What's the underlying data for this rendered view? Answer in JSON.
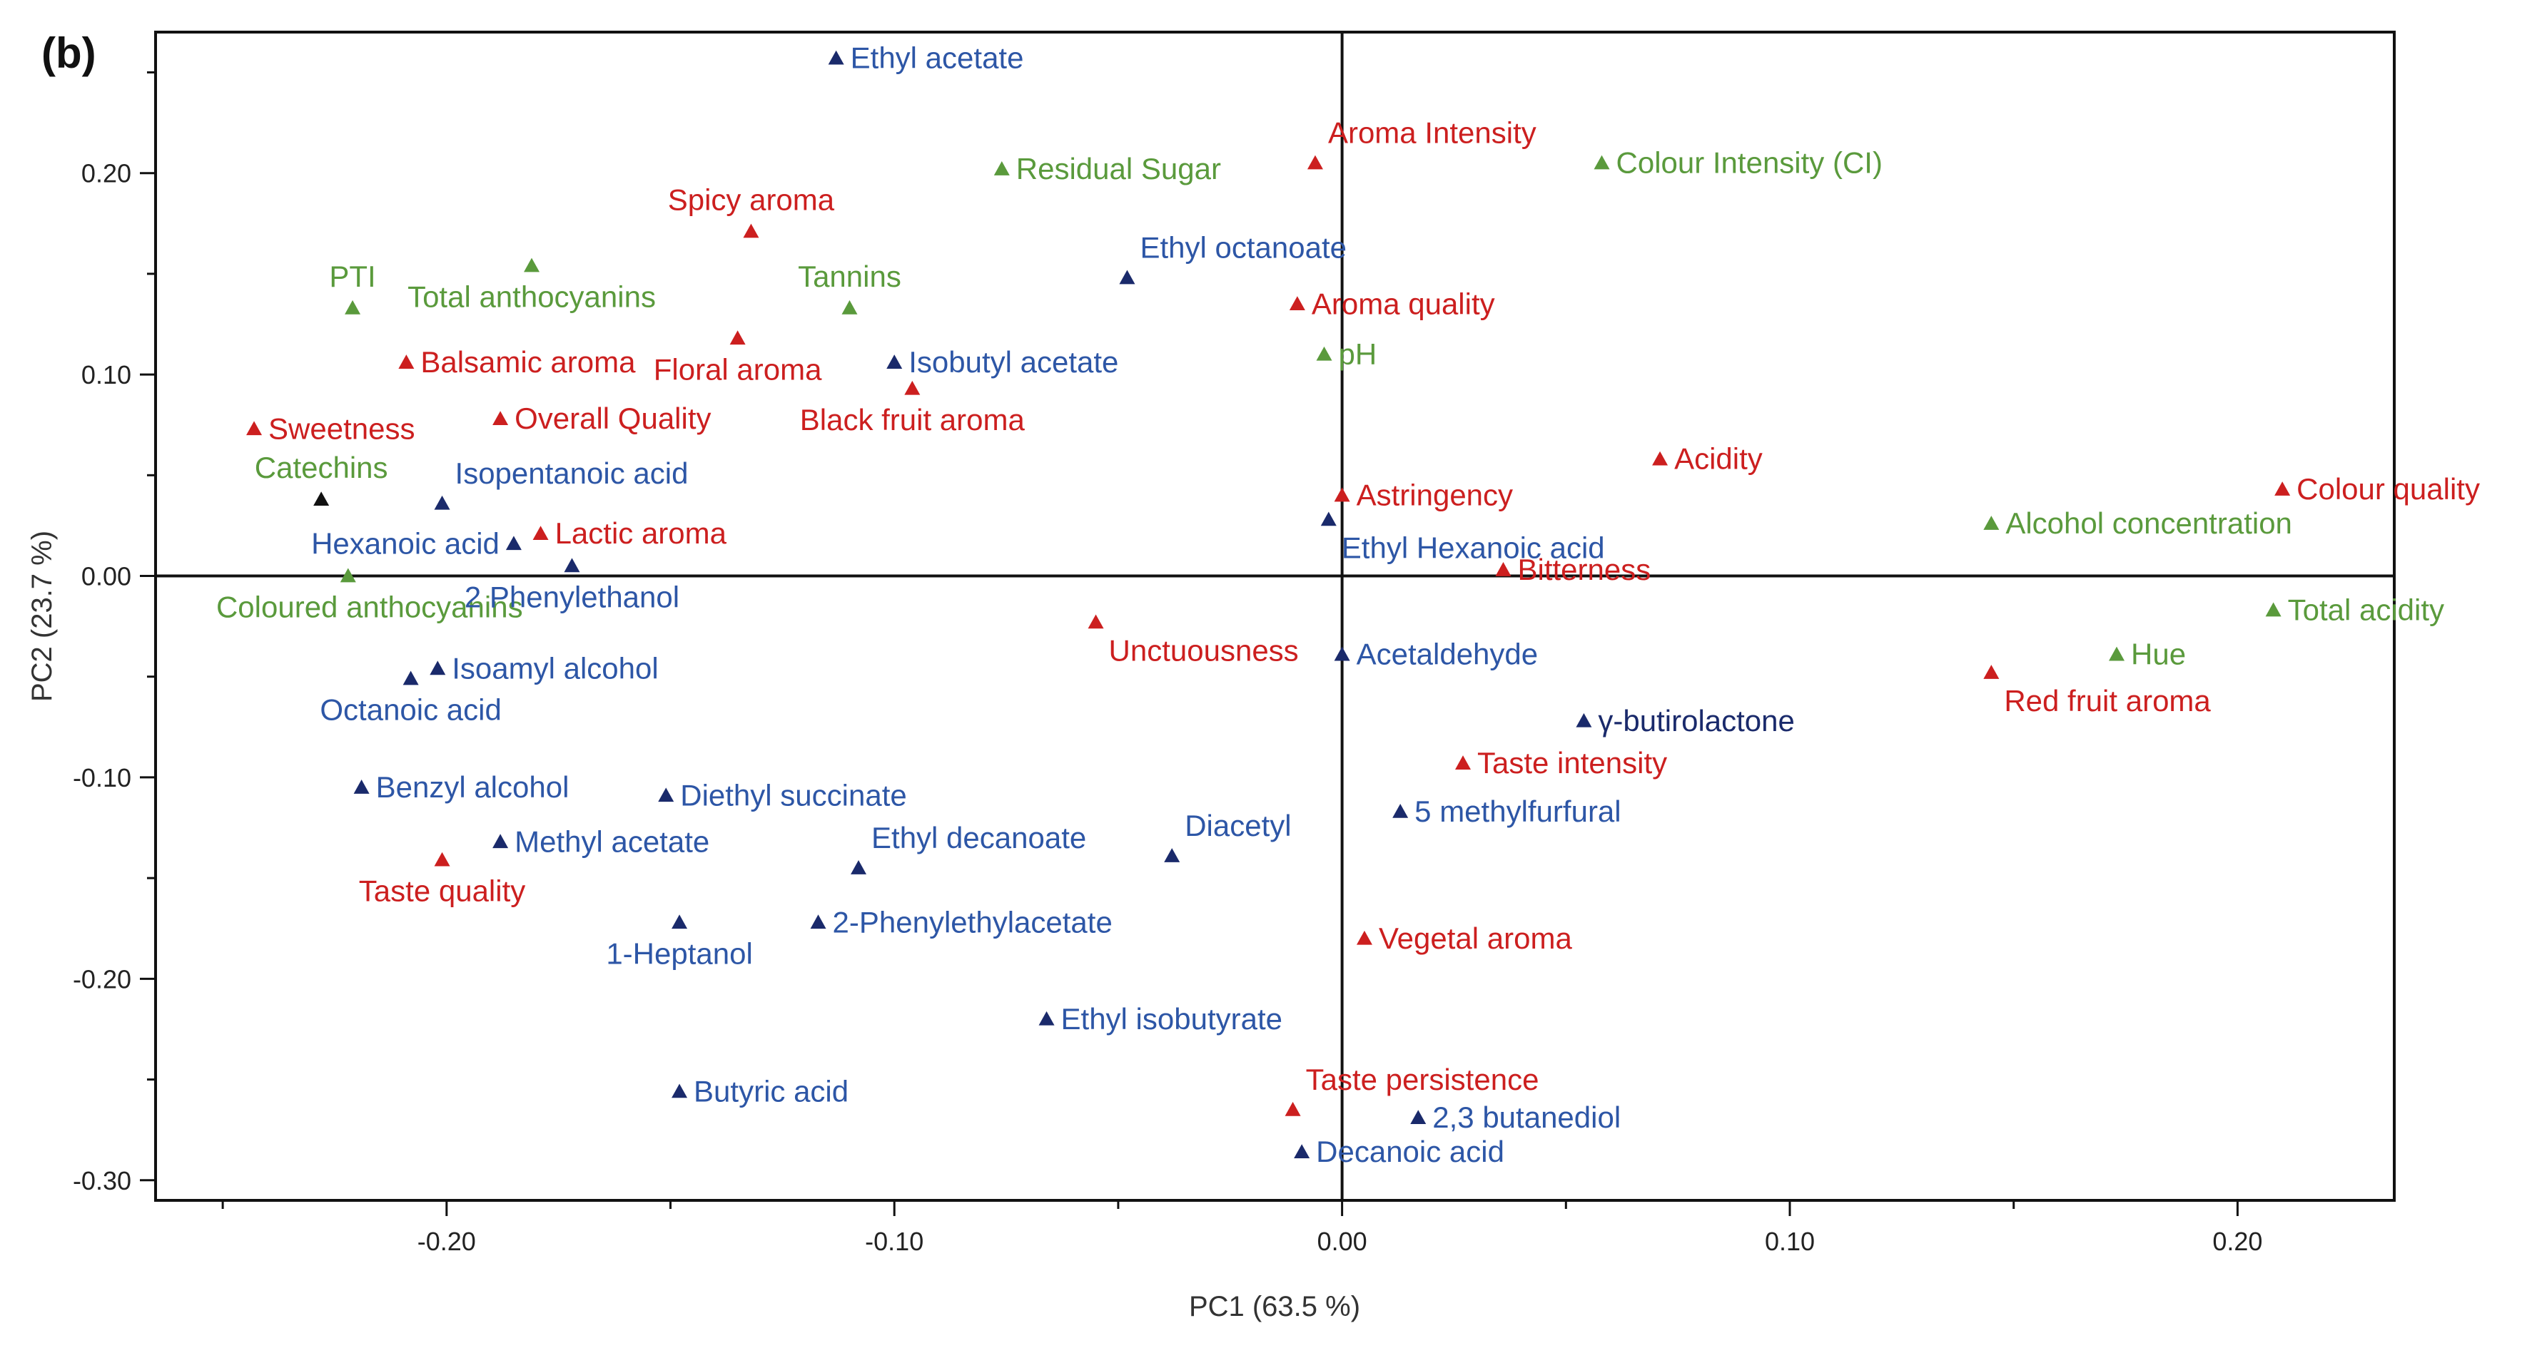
{
  "chart_data": {
    "type": "scatter",
    "panel_label": "(b)",
    "title": "",
    "xlabel": "PC1 (63.5 %)",
    "ylabel": "PC2 (23.7 %)",
    "xlim": [
      -0.265,
      0.235
    ],
    "ylim": [
      -0.31,
      0.27
    ],
    "xticks": [
      -0.2,
      -0.1,
      0.0,
      0.1,
      0.2
    ],
    "xtick_labels": [
      "-0.20",
      "-0.10",
      "0.00",
      "0.10",
      "0.20"
    ],
    "yticks": [
      -0.3,
      -0.2,
      -0.1,
      0.0,
      0.1,
      0.2
    ],
    "ytick_labels": [
      "-0.30",
      "-0.20",
      "-0.10",
      "0.00",
      "0.10",
      "0.20"
    ],
    "grid": false,
    "groups": {
      "sensory": "#cc1f1f",
      "chemical": "#5a9a3c",
      "volatile": "#2d56a6",
      "volatile_dark": "#1a2a6b",
      "black": "#111111"
    },
    "points": [
      {
        "label": "Ethyl acetate",
        "x": -0.113,
        "y": 0.257,
        "group": "volatile",
        "marker_group": "volatile_dark",
        "anchor": "right"
      },
      {
        "label": "Aroma Intensity",
        "x": -0.006,
        "y": 0.205,
        "group": "sensory",
        "anchor": "above-right"
      },
      {
        "label": "Residual Sugar",
        "x": -0.076,
        "y": 0.202,
        "group": "chemical",
        "anchor": "right"
      },
      {
        "label": "Colour Intensity (CI)",
        "x": 0.058,
        "y": 0.205,
        "group": "chemical",
        "anchor": "right"
      },
      {
        "label": "Spicy aroma",
        "x": -0.132,
        "y": 0.171,
        "group": "sensory",
        "anchor": "above"
      },
      {
        "label": "PTI",
        "x": -0.221,
        "y": 0.133,
        "group": "chemical",
        "anchor": "above"
      },
      {
        "label": "Total anthocyanins",
        "x": -0.181,
        "y": 0.154,
        "group": "chemical",
        "anchor": "below"
      },
      {
        "label": "Tannins",
        "x": -0.11,
        "y": 0.133,
        "group": "chemical",
        "anchor": "above"
      },
      {
        "label": "Ethyl octanoate",
        "x": -0.048,
        "y": 0.148,
        "group": "volatile",
        "marker_group": "volatile_dark",
        "anchor": "above-right"
      },
      {
        "label": "Aroma quality",
        "x": -0.01,
        "y": 0.135,
        "group": "sensory",
        "anchor": "right"
      },
      {
        "label": "Balsamic aroma",
        "x": -0.209,
        "y": 0.106,
        "group": "sensory",
        "anchor": "right"
      },
      {
        "label": "Floral aroma",
        "x": -0.135,
        "y": 0.118,
        "group": "sensory",
        "anchor": "below"
      },
      {
        "label": "Isobutyl acetate",
        "x": -0.1,
        "y": 0.106,
        "group": "volatile",
        "marker_group": "volatile_dark",
        "anchor": "right"
      },
      {
        "label": "pH",
        "x": -0.004,
        "y": 0.11,
        "group": "chemical",
        "anchor": "right"
      },
      {
        "label": "Sweetness",
        "x": -0.243,
        "y": 0.073,
        "group": "sensory",
        "anchor": "right"
      },
      {
        "label": "Overall Quality",
        "x": -0.188,
        "y": 0.078,
        "group": "sensory",
        "anchor": "right"
      },
      {
        "label": "Black fruit aroma",
        "x": -0.096,
        "y": 0.093,
        "group": "sensory",
        "anchor": "below"
      },
      {
        "label": "Catechins",
        "x": -0.228,
        "y": 0.038,
        "group": "chemical",
        "marker_group": "black",
        "anchor": "above"
      },
      {
        "label": "Isopentanoic acid",
        "x": -0.201,
        "y": 0.036,
        "group": "volatile",
        "marker_group": "volatile_dark",
        "anchor": "above-right"
      },
      {
        "label": "Acidity",
        "x": 0.071,
        "y": 0.058,
        "group": "sensory",
        "anchor": "right"
      },
      {
        "label": "Astringency",
        "x": 0.0,
        "y": 0.04,
        "group": "sensory",
        "anchor": "right"
      },
      {
        "label": "Colour quality",
        "x": 0.21,
        "y": 0.043,
        "group": "sensory",
        "anchor": "right"
      },
      {
        "label": "Hexanoic acid",
        "x": -0.185,
        "y": 0.016,
        "group": "volatile",
        "marker_group": "volatile_dark",
        "anchor": "left"
      },
      {
        "label": "Lactic aroma",
        "x": -0.179,
        "y": 0.021,
        "group": "sensory",
        "anchor": "right"
      },
      {
        "label": "Ethyl Hexanoic acid",
        "x": -0.003,
        "y": 0.028,
        "group": "volatile",
        "marker_group": "volatile_dark",
        "anchor": "below-right"
      },
      {
        "label": "Alcohol concentration",
        "x": 0.145,
        "y": 0.026,
        "group": "chemical",
        "anchor": "right"
      },
      {
        "label": "Coloured anthocyanins",
        "x": -0.222,
        "y": 0.0,
        "group": "chemical",
        "anchor": "below-left"
      },
      {
        "label": "2 Phenylethanol",
        "x": -0.172,
        "y": 0.005,
        "group": "volatile",
        "marker_group": "volatile_dark",
        "anchor": "below"
      },
      {
        "label": "Bitterness",
        "x": 0.036,
        "y": 0.003,
        "group": "sensory",
        "anchor": "right"
      },
      {
        "label": "Total acidity",
        "x": 0.208,
        "y": -0.017,
        "group": "chemical",
        "anchor": "right"
      },
      {
        "label": "Unctuousness",
        "x": -0.055,
        "y": -0.023,
        "group": "sensory",
        "anchor": "below-right"
      },
      {
        "label": "Acetaldehyde",
        "x": 0.0,
        "y": -0.039,
        "group": "volatile",
        "marker_group": "volatile_dark",
        "anchor": "right"
      },
      {
        "label": "Hue",
        "x": 0.173,
        "y": -0.039,
        "group": "chemical",
        "anchor": "right"
      },
      {
        "label": "Isoamyl alcohol",
        "x": -0.202,
        "y": -0.046,
        "group": "volatile",
        "marker_group": "volatile_dark",
        "anchor": "right"
      },
      {
        "label": "Octanoic acid",
        "x": -0.208,
        "y": -0.051,
        "group": "volatile",
        "marker_group": "volatile_dark",
        "anchor": "below"
      },
      {
        "label": "Red fruit aroma",
        "x": 0.145,
        "y": -0.048,
        "group": "sensory",
        "anchor": "below-right"
      },
      {
        "label": "γ-butirolactone",
        "x": 0.054,
        "y": -0.072,
        "group": "volatile",
        "marker_group": "volatile_dark",
        "label_group": "volatile_dark",
        "anchor": "right"
      },
      {
        "label": "Taste intensity",
        "x": 0.027,
        "y": -0.093,
        "group": "sensory",
        "anchor": "right"
      },
      {
        "label": "Benzyl alcohol",
        "x": -0.219,
        "y": -0.105,
        "group": "volatile",
        "marker_group": "volatile_dark",
        "anchor": "right"
      },
      {
        "label": "Diethyl succinate",
        "x": -0.151,
        "y": -0.109,
        "group": "volatile",
        "marker_group": "volatile_dark",
        "anchor": "right"
      },
      {
        "label": "5 methylfurfural",
        "x": 0.013,
        "y": -0.117,
        "group": "volatile",
        "marker_group": "volatile_dark",
        "anchor": "right"
      },
      {
        "label": "Methyl acetate",
        "x": -0.188,
        "y": -0.132,
        "group": "volatile",
        "marker_group": "volatile_dark",
        "anchor": "right"
      },
      {
        "label": "Ethyl decanoate",
        "x": -0.108,
        "y": -0.145,
        "group": "volatile",
        "marker_group": "volatile_dark",
        "anchor": "above-right"
      },
      {
        "label": "Diacetyl",
        "x": -0.038,
        "y": -0.139,
        "group": "volatile",
        "marker_group": "volatile_dark",
        "anchor": "above-right"
      },
      {
        "label": "Taste quality",
        "x": -0.201,
        "y": -0.141,
        "group": "sensory",
        "anchor": "below"
      },
      {
        "label": "1-Heptanol",
        "x": -0.148,
        "y": -0.172,
        "group": "volatile",
        "marker_group": "volatile_dark",
        "anchor": "below"
      },
      {
        "label": "2-Phenylethylacetate",
        "x": -0.117,
        "y": -0.172,
        "group": "volatile",
        "marker_group": "volatile_dark",
        "anchor": "right"
      },
      {
        "label": "Vegetal aroma",
        "x": 0.005,
        "y": -0.18,
        "group": "sensory",
        "anchor": "right"
      },
      {
        "label": "Ethyl isobutyrate",
        "x": -0.066,
        "y": -0.22,
        "group": "volatile",
        "marker_group": "volatile_dark",
        "anchor": "right"
      },
      {
        "label": "Butyric acid",
        "x": -0.148,
        "y": -0.256,
        "group": "volatile",
        "marker_group": "volatile_dark",
        "anchor": "right"
      },
      {
        "label": "Taste persistence",
        "x": -0.011,
        "y": -0.265,
        "group": "sensory",
        "anchor": "above-right"
      },
      {
        "label": "2,3 butanediol",
        "x": 0.017,
        "y": -0.269,
        "group": "volatile",
        "marker_group": "volatile_dark",
        "anchor": "right"
      },
      {
        "label": "Decanoic acid",
        "x": -0.009,
        "y": -0.286,
        "group": "volatile",
        "marker_group": "volatile_dark",
        "anchor": "right"
      }
    ]
  }
}
